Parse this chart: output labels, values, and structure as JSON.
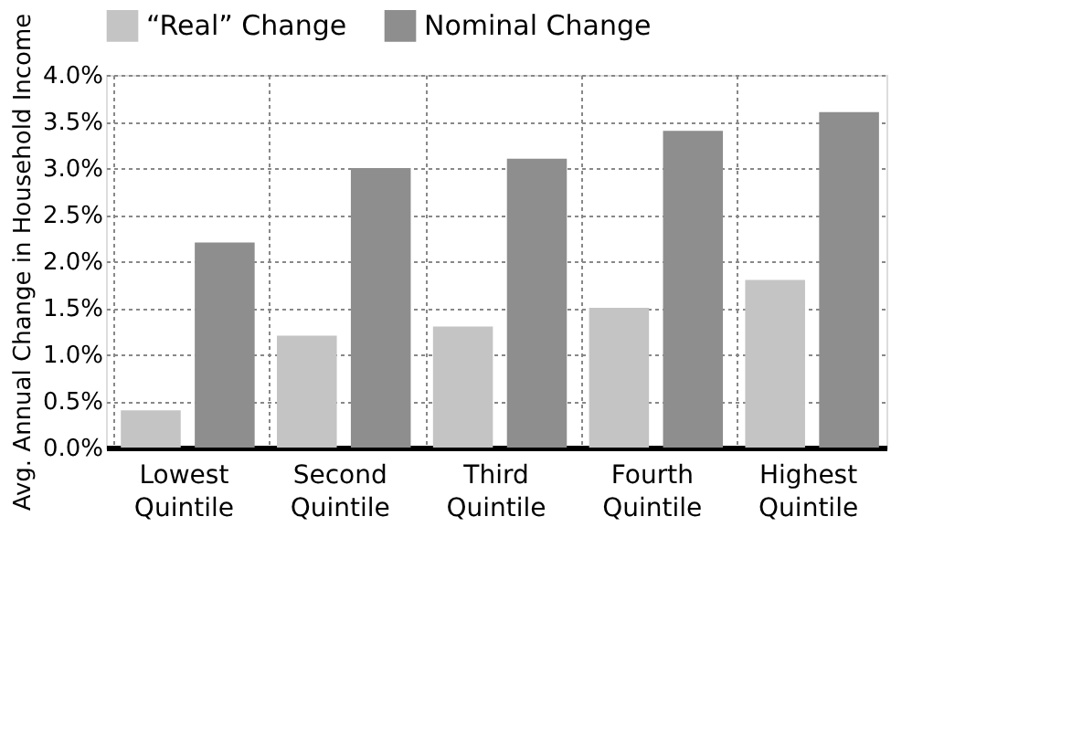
{
  "chart_data": {
    "type": "bar",
    "ylabel": "Avg. Annual Change in Household Income",
    "categories": [
      "Lowest Quintile",
      "Second Quintile",
      "Third Quintile",
      "Fourth Quintile",
      "Highest Quintile"
    ],
    "series": [
      {
        "name": "“Real” Change",
        "color": "#c4c4c4",
        "values": [
          0.4,
          1.2,
          1.3,
          1.5,
          1.8
        ]
      },
      {
        "name": "Nominal Change",
        "color": "#8e8e8e",
        "values": [
          2.2,
          3.0,
          3.1,
          3.4,
          3.6
        ]
      }
    ],
    "ylim": [
      0,
      4
    ],
    "yticks": [
      {
        "value": 0,
        "label": "0.0%"
      },
      {
        "value": 0.5,
        "label": "0.5%"
      },
      {
        "value": 1,
        "label": "1.0%"
      },
      {
        "value": 1.5,
        "label": "1.5%"
      },
      {
        "value": 2,
        "label": "2.0%"
      },
      {
        "value": 2.5,
        "label": "2.5%"
      },
      {
        "value": 3,
        "label": "3.0%"
      },
      {
        "value": 3.5,
        "label": "3.5%"
      },
      {
        "value": 4,
        "label": "4.0%"
      }
    ],
    "grid": true,
    "legend": "top"
  }
}
